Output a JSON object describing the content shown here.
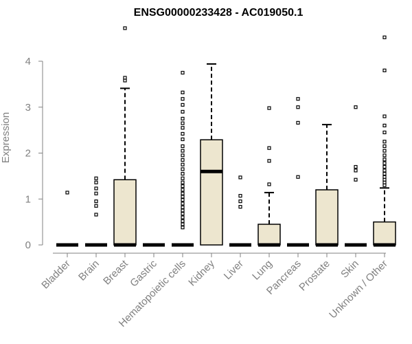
{
  "chart_data": {
    "type": "boxplot",
    "title": "ENSG00000233428 - AC019050.1",
    "ylabel": "Expression",
    "xlabel": "",
    "ylim": [
      0,
      4.8
    ],
    "yticks": [
      0,
      1,
      2,
      3,
      4
    ],
    "box_fill": "#ede6cf",
    "stroke": "#000000",
    "label_color": "#808080",
    "categories": [
      "Bladder",
      "Brain",
      "Breast",
      "Gastric",
      "Hematopoietic cells",
      "Kidney",
      "Liver",
      "Lung",
      "Pancreas",
      "Prostate",
      "Skin",
      "Unknown / Other"
    ],
    "boxes": [
      {
        "q1": 0,
        "median": 0,
        "q3": 0,
        "whisker_low": 0,
        "whisker_high": 0,
        "outliers": [
          1.14
        ]
      },
      {
        "q1": 0,
        "median": 0,
        "q3": 0,
        "whisker_low": 0,
        "whisker_high": 0,
        "outliers": [
          0.66,
          0.85,
          0.95,
          1.12,
          1.23,
          1.36,
          1.45
        ]
      },
      {
        "q1": 0,
        "median": 0,
        "q3": 1.42,
        "whisker_low": 0,
        "whisker_high": 3.41,
        "outliers": [
          3.58,
          3.64,
          4.72
        ]
      },
      {
        "q1": 0,
        "median": 0,
        "q3": 0,
        "whisker_low": 0,
        "whisker_high": 0,
        "outliers": []
      },
      {
        "q1": 0,
        "median": 0,
        "q3": 0,
        "whisker_low": 0,
        "whisker_high": 0,
        "outliers": [
          0.38,
          0.45,
          0.52,
          0.6,
          0.68,
          0.75,
          0.82,
          0.9,
          0.98,
          1.05,
          1.12,
          1.2,
          1.28,
          1.36,
          1.45,
          1.55,
          1.65,
          1.75,
          1.85,
          1.95,
          2.05,
          2.15,
          2.3,
          2.42,
          2.55,
          2.65,
          2.75,
          2.9,
          3.05,
          3.18,
          3.32,
          3.75
        ]
      },
      {
        "q1": 0,
        "median": 1.6,
        "q3": 2.29,
        "whisker_low": 0,
        "whisker_high": 3.94,
        "outliers": []
      },
      {
        "q1": 0,
        "median": 0,
        "q3": 0,
        "whisker_low": 0,
        "whisker_high": 0,
        "outliers": [
          0.83,
          0.95,
          1.07,
          1.47
        ]
      },
      {
        "q1": 0,
        "median": 0,
        "q3": 0.45,
        "whisker_low": 0,
        "whisker_high": 1.14,
        "outliers": [
          1.32,
          1.83,
          2.11,
          2.98
        ]
      },
      {
        "q1": 0,
        "median": 0,
        "q3": 0,
        "whisker_low": 0,
        "whisker_high": 0,
        "outliers": [
          1.48,
          2.66,
          3.0,
          3.18
        ]
      },
      {
        "q1": 0,
        "median": 0,
        "q3": 1.2,
        "whisker_low": 0,
        "whisker_high": 2.62,
        "outliers": []
      },
      {
        "q1": 0,
        "median": 0,
        "q3": 0,
        "whisker_low": 0,
        "whisker_high": 0,
        "outliers": [
          1.42,
          1.62,
          1.7,
          3.0
        ]
      },
      {
        "q1": 0,
        "median": 0,
        "q3": 0.5,
        "whisker_low": 0,
        "whisker_high": 1.24,
        "outliers": [
          1.3,
          1.36,
          1.42,
          1.48,
          1.55,
          1.62,
          1.7,
          1.78,
          1.86,
          1.95,
          2.05,
          2.15,
          2.25,
          2.45,
          2.6,
          2.8,
          3.8,
          4.52
        ]
      }
    ]
  }
}
